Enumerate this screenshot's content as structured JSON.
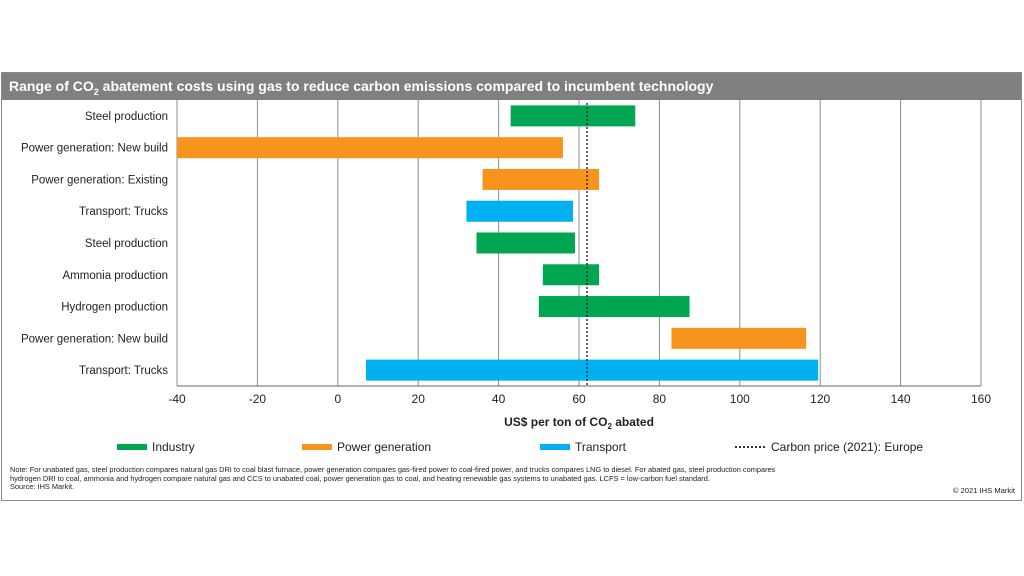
{
  "title_main": "Range of CO",
  "title_sub": "2",
  "title_rest": " abatement costs using gas to reduce carbon emissions compared to incumbent technology",
  "chart_data": {
    "type": "bar",
    "orientation": "horizontal-range",
    "xlabel_main": "US$ per ton of CO",
    "xlabel_sub": "2",
    "xlabel_rest": " abated",
    "xlim": [
      -40,
      160
    ],
    "xticks": [
      -40,
      -20,
      0,
      20,
      40,
      60,
      80,
      100,
      120,
      140,
      160
    ],
    "grid": true,
    "reference_line": {
      "value": 62,
      "label": "Carbon price (2021): Europe"
    },
    "series_colors": {
      "Industry": "#00a651",
      "Power generation": "#f7941d",
      "Transport": "#00b0f0"
    },
    "bars": [
      {
        "label": "Steel production",
        "series": "Industry",
        "low": 43,
        "high": 74
      },
      {
        "label": "Power generation: New build",
        "series": "Power generation",
        "low": -40,
        "high": 56
      },
      {
        "label": "Power generation: Existing",
        "series": "Power generation",
        "low": 36,
        "high": 65
      },
      {
        "label": "Transport: Trucks",
        "series": "Transport",
        "low": 32,
        "high": 58.5
      },
      {
        "label": "Steel production",
        "series": "Industry",
        "low": 34.5,
        "high": 59
      },
      {
        "label": "Ammonia production",
        "series": "Industry",
        "low": 51,
        "high": 65
      },
      {
        "label": "Hydrogen production",
        "series": "Industry",
        "low": 50,
        "high": 87.5
      },
      {
        "label": "Power generation: New build",
        "series": "Power generation",
        "low": 83,
        "high": 116.5
      },
      {
        "label": "Transport: Trucks",
        "series": "Transport",
        "low": 7,
        "high": 119.5
      }
    ]
  },
  "legend": {
    "industry": "Industry",
    "power": "Power generation",
    "transport": "Transport",
    "carbon": "Carbon price (2021): Europe"
  },
  "note_lines": [
    "Note: For unabated gas, steel production compares natural gas DRI to coal blast furnace, power generation compares gas-fired power to coal-fired power, and trucks compares LNG to diesel. For abated gas, steel production compares",
    "hydrogen DRI to coal, ammonia and hydrogen compare natural gas and CCS to unabated coal, power generation gas to coal, and heating renewable gas systems to unabated gas. LCFS = low-carbon fuel standard.",
    "Source: IHS Markit."
  ],
  "copyright": "© 2021 IHS Markit"
}
